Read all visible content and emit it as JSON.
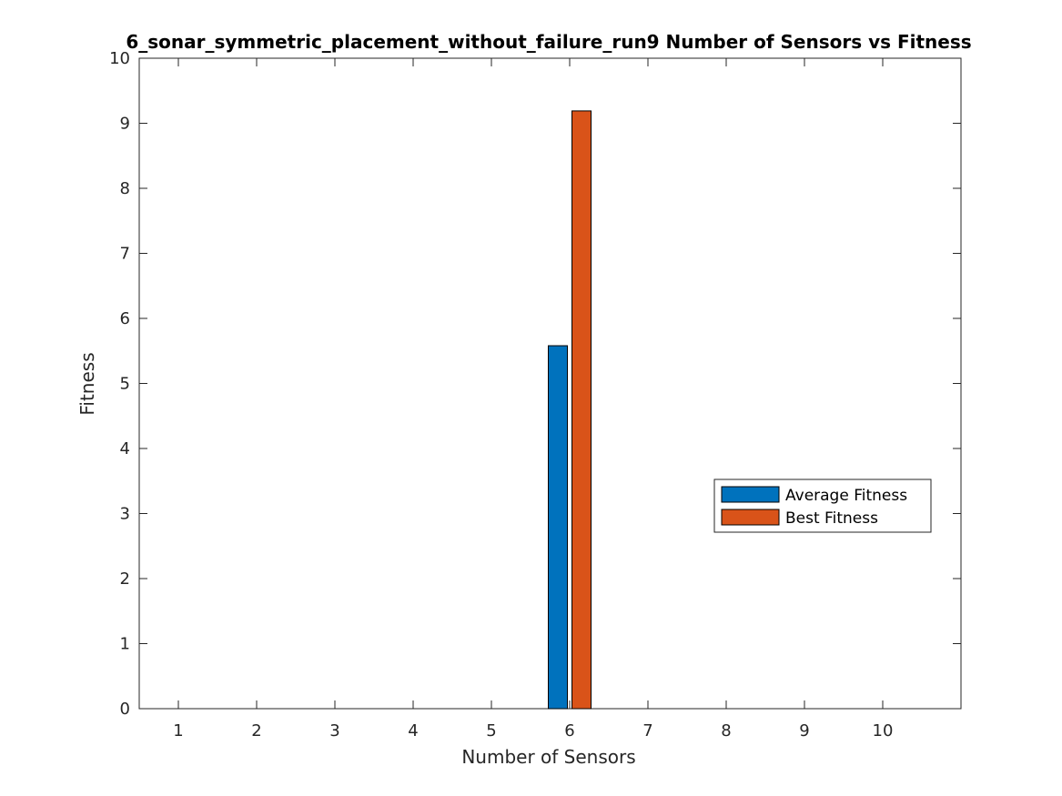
{
  "chart_data": {
    "type": "bar",
    "title": "6_sonar_symmetric_placement_without_failure_run9 Number of Sensors vs Fitness",
    "xlabel": "Number of Sensors",
    "ylabel": "Fitness",
    "categories": [
      "1",
      "2",
      "3",
      "4",
      "5",
      "6",
      "7",
      "8",
      "9",
      "10"
    ],
    "ylim": [
      0,
      10
    ],
    "yticks": [
      "0",
      "1",
      "2",
      "3",
      "4",
      "5",
      "6",
      "7",
      "8",
      "9",
      "10"
    ],
    "grid": false,
    "legend_position": "middle-right",
    "series": [
      {
        "name": "Average Fitness",
        "color": "#0072BD",
        "values": [
          0,
          0,
          0,
          0,
          0,
          5.58,
          0,
          0,
          0,
          0
        ]
      },
      {
        "name": "Best Fitness",
        "color": "#D95319",
        "values": [
          0,
          0,
          0,
          0,
          0,
          9.19,
          0,
          0,
          0,
          0
        ]
      }
    ]
  }
}
